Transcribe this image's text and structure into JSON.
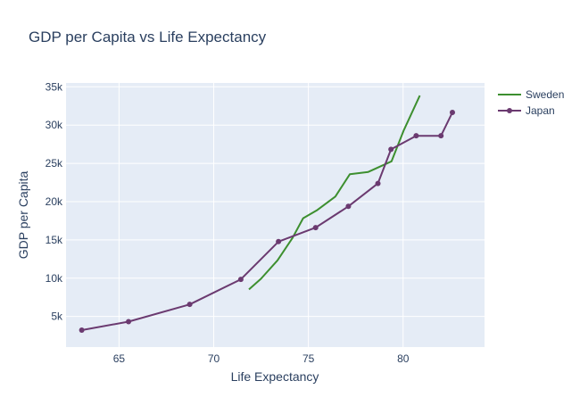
{
  "chart_data": {
    "type": "line",
    "title": "GDP per Capita vs Life Expectancy",
    "xlabel": "Life Expectancy",
    "ylabel": "GDP per Capita",
    "xlim": [
      62.2,
      84.3
    ],
    "ylim": [
      1000,
      35500
    ],
    "x_ticks": [
      65,
      70,
      75,
      80
    ],
    "x_tick_labels": [
      "65",
      "70",
      "75",
      "80"
    ],
    "y_ticks": [
      5000,
      10000,
      15000,
      20000,
      25000,
      30000,
      35000
    ],
    "y_tick_labels": [
      "5k",
      "10k",
      "15k",
      "20k",
      "25k",
      "30k",
      "35k"
    ],
    "grid": true,
    "legend_position": "top-right",
    "series": [
      {
        "name": "Sweden",
        "color": "#3d8f2f",
        "markers": false,
        "x": [
          71.86,
          72.49,
          73.37,
          74.16,
          74.72,
          75.44,
          76.42,
          77.19,
          78.16,
          79.39,
          80.04,
          80.884
        ],
        "y": [
          8528,
          9912,
          12329,
          15258,
          17832,
          18856,
          20667,
          23587,
          23880,
          25267,
          29342,
          33860
        ]
      },
      {
        "name": "Japan",
        "color": "#6b3a70",
        "markers": true,
        "x": [
          63.03,
          65.5,
          68.73,
          71.43,
          73.42,
          75.38,
          77.11,
          78.67,
          79.36,
          80.69,
          82.0,
          82.603
        ],
        "y": [
          3217,
          4318,
          6577,
          9848,
          14779,
          16610,
          19384,
          22376,
          26825,
          28605,
          28605,
          31656
        ]
      }
    ]
  }
}
